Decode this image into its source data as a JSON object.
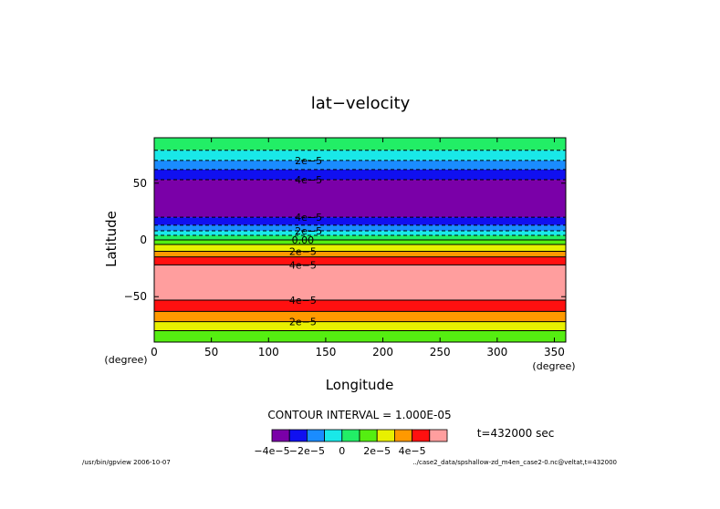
{
  "chart_data": {
    "type": "heatmap",
    "title": "lat−velocity",
    "xlabel": "Longitude",
    "ylabel": "Latitude",
    "x_unit": "(degree)",
    "y_unit": "(degree)",
    "xlim": [
      0,
      360
    ],
    "ylim": [
      -90,
      90
    ],
    "x_ticks": [
      0,
      50,
      100,
      150,
      200,
      250,
      300,
      350
    ],
    "y_ticks": [
      50,
      0,
      -50
    ],
    "y_tick_labels": [
      "50",
      "0",
      "−50"
    ],
    "contour_interval_label": "CONTOUR INTERVAL = 1.000E-05",
    "time_label": "t=432000 sec",
    "footer_left": "/usr/bin/gpview   2006-10-07",
    "footer_right": "../case2_data/spshallow-zd_m4en_case2-0.nc@veltat,t=432000",
    "levels": [
      -5e-05,
      -4e-05,
      -3e-05,
      -2e-05,
      -1e-05,
      0,
      1e-05,
      2e-05,
      3e-05,
      4e-05,
      5e-05
    ],
    "colorbar": {
      "colors": [
        "#7a00a8",
        "#1010f0",
        "#1a8cff",
        "#19e8e8",
        "#22ee66",
        "#55ee11",
        "#e8f000",
        "#ff9900",
        "#ff1010",
        "#ff9e9e"
      ],
      "tick_labels": [
        "−4e−5",
        "−2e−5",
        "0",
        "2e−5",
        "4e−5"
      ]
    },
    "bands": [
      {
        "lat_top": 90,
        "lat_bottom": 79,
        "color": "#22ee66"
      },
      {
        "lat_top": 79,
        "lat_bottom": 70,
        "color": "#19e8e8"
      },
      {
        "lat_top": 70,
        "lat_bottom": 62,
        "color": "#1a8cff"
      },
      {
        "lat_top": 62,
        "lat_bottom": 53,
        "color": "#1010f0"
      },
      {
        "lat_top": 53,
        "lat_bottom": 20,
        "color": "#7a00a8"
      },
      {
        "lat_top": 20,
        "lat_bottom": 13,
        "color": "#1010f0"
      },
      {
        "lat_top": 13,
        "lat_bottom": 8,
        "color": "#1a8cff"
      },
      {
        "lat_top": 8,
        "lat_bottom": 4,
        "color": "#19e8e8"
      },
      {
        "lat_top": 4,
        "lat_bottom": 0,
        "color": "#22ee66"
      },
      {
        "lat_top": 0,
        "lat_bottom": -4,
        "color": "#55ee11"
      },
      {
        "lat_top": -4,
        "lat_bottom": -10,
        "color": "#e8f000"
      },
      {
        "lat_top": -10,
        "lat_bottom": -15,
        "color": "#ff9900"
      },
      {
        "lat_top": -15,
        "lat_bottom": -22,
        "color": "#ff1010"
      },
      {
        "lat_top": -22,
        "lat_bottom": -53,
        "color": "#ff9e9e"
      },
      {
        "lat_top": -53,
        "lat_bottom": -63,
        "color": "#ff1010"
      },
      {
        "lat_top": -63,
        "lat_bottom": -72,
        "color": "#ff9900"
      },
      {
        "lat_top": -72,
        "lat_bottom": -80,
        "color": "#e8f000"
      },
      {
        "lat_top": -80,
        "lat_bottom": -90,
        "color": "#55ee11"
      }
    ],
    "contour_lines": [
      {
        "lat": 79,
        "dashed": true
      },
      {
        "lat": 70,
        "dashed": true
      },
      {
        "lat": 62,
        "dashed": true
      },
      {
        "lat": 53,
        "dashed": true
      },
      {
        "lat": 20,
        "dashed": true
      },
      {
        "lat": 13,
        "dashed": true
      },
      {
        "lat": 8,
        "dashed": true
      },
      {
        "lat": 4,
        "dashed": true
      },
      {
        "lat": 0,
        "dashed": false
      },
      {
        "lat": -4,
        "dashed": false
      },
      {
        "lat": -10,
        "dashed": false
      },
      {
        "lat": -15,
        "dashed": false
      },
      {
        "lat": -22,
        "dashed": false
      },
      {
        "lat": -53,
        "dashed": false
      },
      {
        "lat": -63,
        "dashed": false
      },
      {
        "lat": -72,
        "dashed": false
      },
      {
        "lat": -80,
        "dashed": false
      }
    ],
    "contour_labels": [
      {
        "text": "2e−5",
        "lon": 135,
        "lat": 70
      },
      {
        "text": "4e−5",
        "lon": 135,
        "lat": 53
      },
      {
        "text": "4e−5",
        "lon": 135,
        "lat": 20
      },
      {
        "text": "2e−5",
        "lon": 135,
        "lat": 8
      },
      {
        "text": "0.00",
        "lon": 130,
        "lat": 0
      },
      {
        "text": "2e−5",
        "lon": 130,
        "lat": -10
      },
      {
        "text": "4e−5",
        "lon": 130,
        "lat": -22
      },
      {
        "text": "4e−5",
        "lon": 130,
        "lat": -53
      },
      {
        "text": "2e−5",
        "lon": 130,
        "lat": -72
      }
    ]
  }
}
